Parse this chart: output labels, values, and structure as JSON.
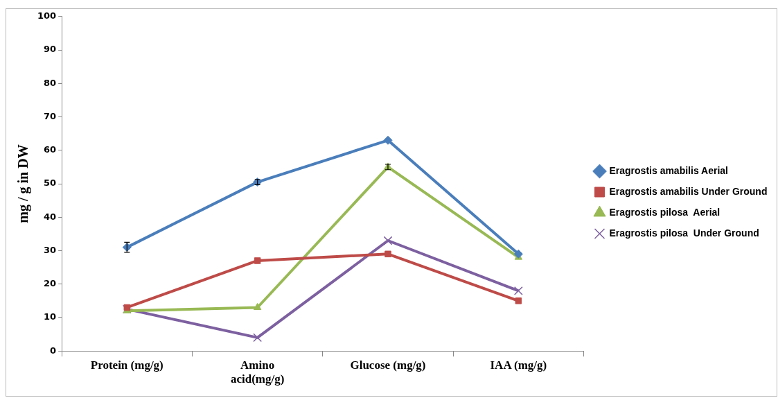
{
  "chart_data": {
    "type": "line",
    "ylabel": "mg / g in DW",
    "categories": [
      "Protein (mg/g)",
      "Amino acid(mg/g)",
      "Glucose (mg/g)",
      "IAA (mg/g)"
    ],
    "ylim": [
      0,
      100
    ],
    "yticks": [
      0,
      10,
      20,
      30,
      40,
      50,
      60,
      70,
      80,
      90,
      100
    ],
    "grid": false,
    "legend": "right",
    "line_style": "solid",
    "series": [
      {
        "name": "Eragrostis amabilis Aerial",
        "color": "#4a7ebb",
        "marker": "diamond",
        "values": [
          31,
          50.5,
          63,
          29
        ],
        "errors": [
          1.5,
          0.8,
          null,
          null
        ]
      },
      {
        "name": "Eragrostis amabilis Under Ground",
        "color": "#be4b48",
        "marker": "square",
        "values": [
          13,
          27,
          29,
          15
        ]
      },
      {
        "name": "Eragrostis pilosa  Aerial",
        "color": "#98b954",
        "marker": "triangle",
        "values": [
          12,
          13,
          55,
          28
        ],
        "errors": [
          null,
          null,
          0.8,
          null
        ]
      },
      {
        "name": "Eragrostis pilosa  Under Ground",
        "color": "#7d60a0",
        "marker": "cross",
        "values": [
          12.5,
          4,
          33,
          18
        ]
      }
    ]
  }
}
